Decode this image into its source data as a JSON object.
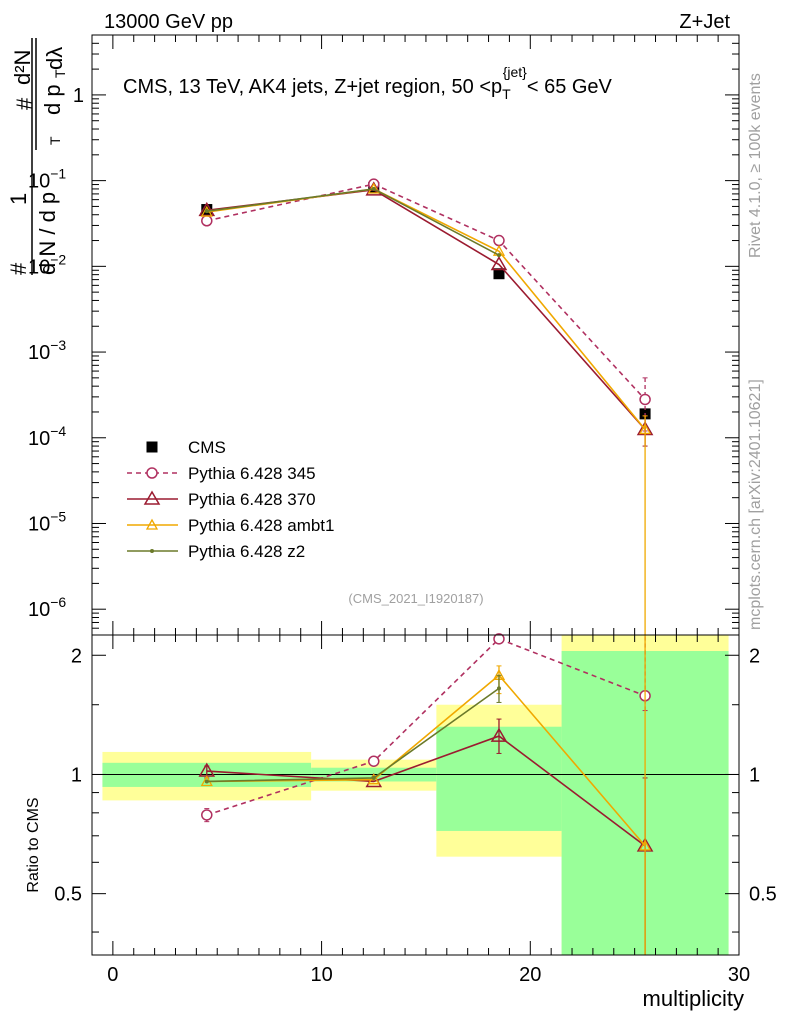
{
  "header": {
    "left": "13000 GeV pp",
    "right": "Z+Jet"
  },
  "side_labels": {
    "rivet": "Rivet 4.1.0, ≥ 100k events",
    "mcplots": "mcplots.cern.ch [arXiv:2401.10621]"
  },
  "chart_data": [
    {
      "type": "line",
      "panel": "main",
      "title": "CMS, 13 TeV, AK4 jets, Z+jet region, 50 <p_T^{jet}< 65 GeV",
      "title_parts": {
        "pre": "CMS, 13 TeV, AK4 jets, Z+jet region, 50 <p",
        "sub": "T",
        "sup": "{jet}",
        "post": "< 65 GeV"
      },
      "ylabel": "1/(dN/dp_T) d²N/(dp_T dλ)",
      "ylabel_parts": {
        "hash": "#",
        "one": "1",
        "dN": "d N / d p",
        "T": "T",
        "d2N": "d²N",
        "dp": "d p",
        "dl": "dλ"
      },
      "yscale": "log",
      "ylim": [
        5e-07,
        5
      ],
      "xlim": [
        -1,
        30
      ],
      "y_ticks": [
        {
          "v": 1e-06,
          "mant": "10",
          "exp": "−6"
        },
        {
          "v": 1e-05,
          "mant": "10",
          "exp": "−5"
        },
        {
          "v": 0.0001,
          "mant": "10",
          "exp": "−4"
        },
        {
          "v": 0.001,
          "mant": "10",
          "exp": "−3"
        },
        {
          "v": 0.01,
          "mant": "10",
          "exp": "−2"
        },
        {
          "v": 0.1,
          "mant": "10",
          "exp": "−1"
        },
        {
          "v": 1,
          "mant": "1",
          "exp": ""
        }
      ],
      "watermark": "(CMS_2021_I1920187)",
      "x": [
        4.5,
        12.5,
        18.5,
        25.5
      ],
      "series": [
        {
          "name": "CMS",
          "color": "#000000",
          "marker": "square",
          "line": "none",
          "values": [
            0.046,
            0.083,
            0.0082,
            0.00019
          ]
        },
        {
          "name": "Pythia 6.428 345",
          "color": "#b03060",
          "marker": "circle",
          "line": "dashed",
          "values": [
            0.034,
            0.091,
            0.02,
            0.00028
          ],
          "err": [
            null,
            null,
            null,
            [
              0.00012,
              0.0005
            ]
          ]
        },
        {
          "name": "Pythia 6.428 370",
          "color": "#9b1b30",
          "marker": "triangle",
          "line": "solid",
          "values": [
            0.045,
            0.078,
            0.0105,
            0.000125
          ],
          "err": [
            null,
            null,
            null,
            [
              8e-05,
              0.00018
            ]
          ]
        },
        {
          "name": "Pythia 6.428 ambt1",
          "color": "#f0a800",
          "marker": "triangle-small",
          "line": "solid",
          "values": [
            0.043,
            0.08,
            0.015,
            0.000125
          ],
          "err": [
            null,
            null,
            null,
            [
              5e-07,
              0.00018
            ]
          ]
        },
        {
          "name": "Pythia 6.428 z2",
          "color": "#6b7a2a",
          "marker": "dot",
          "line": "solid",
          "values": [
            0.044,
            0.08,
            0.0135,
            null
          ]
        }
      ]
    },
    {
      "type": "line",
      "panel": "ratio",
      "ylabel": "Ratio to CMS",
      "xlabel": "multiplicity",
      "ylim": [
        0.35,
        2.25
      ],
      "xlim": [
        -1,
        30
      ],
      "x_ticks": [
        0,
        10,
        20,
        30
      ],
      "y_ticks": [
        0.5,
        1,
        2
      ],
      "bands": [
        {
          "x": [
            -0.5,
            9.5
          ],
          "green": [
            0.93,
            1.07
          ],
          "yellow": [
            0.86,
            1.14
          ]
        },
        {
          "x": [
            9.5,
            15.5
          ],
          "green": [
            0.96,
            1.04
          ],
          "yellow": [
            0.91,
            1.09
          ]
        },
        {
          "x": [
            15.5,
            21.5
          ],
          "green": [
            0.72,
            1.32
          ],
          "yellow": [
            0.62,
            1.5
          ]
        },
        {
          "x": [
            21.5,
            29.5
          ],
          "green": [
            0.35,
            2.05
          ],
          "yellow": [
            0.35,
            2.25
          ]
        }
      ],
      "x": [
        4.5,
        12.5,
        18.5,
        25.5
      ],
      "series": [
        {
          "name": "Pythia 6.428 345",
          "color": "#b03060",
          "marker": "circle",
          "line": "dashed",
          "values": [
            0.79,
            1.08,
            2.2,
            1.58
          ],
          "err": [
            [
              0.76,
              0.82
            ],
            null,
            [
              2.15,
              2.25
            ],
            [
              1.45,
              2.25
            ]
          ]
        },
        {
          "name": "Pythia 6.428 370",
          "color": "#9b1b30",
          "marker": "triangle",
          "line": "solid",
          "values": [
            1.02,
            0.96,
            1.25,
            0.66
          ],
          "err": [
            [
              0.98,
              1.05
            ],
            null,
            [
              1.13,
              1.38
            ],
            [
              0.35,
              0.98
            ]
          ]
        },
        {
          "name": "Pythia 6.428 ambt1",
          "color": "#f0a800",
          "marker": "triangle-small",
          "line": "solid",
          "values": [
            0.96,
            0.97,
            1.78,
            0.66
          ],
          "err": [
            null,
            null,
            [
              1.6,
              1.88
            ],
            [
              0.35,
              2.25
            ]
          ]
        },
        {
          "name": "Pythia 6.428 z2",
          "color": "#6b7a2a",
          "marker": "dot",
          "line": "solid",
          "values": [
            0.96,
            0.98,
            1.65,
            null
          ],
          "err": [
            null,
            null,
            [
              1.52,
              1.78
            ],
            null
          ]
        }
      ]
    }
  ]
}
